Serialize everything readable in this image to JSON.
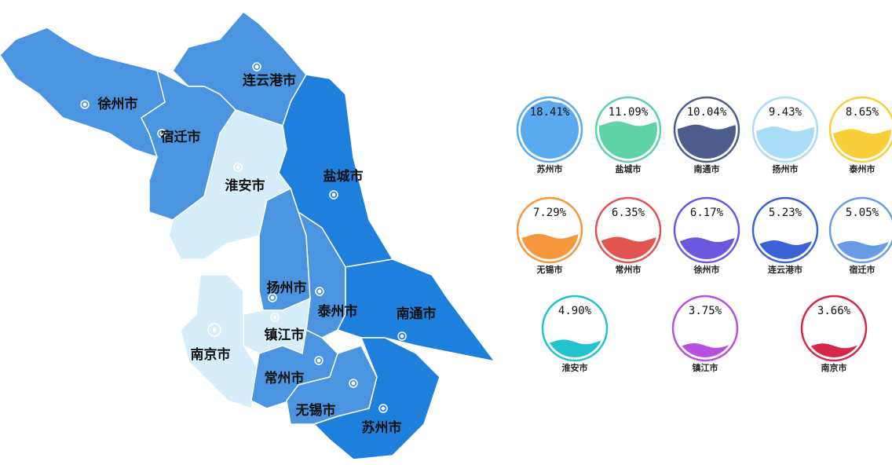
{
  "map": {
    "regions": [
      {
        "name": "徐州市"
      },
      {
        "name": "连云港市"
      },
      {
        "name": "宿迁市"
      },
      {
        "name": "淮安市"
      },
      {
        "name": "盐城市"
      },
      {
        "name": "扬州市"
      },
      {
        "name": "泰州市"
      },
      {
        "name": "南通市"
      },
      {
        "name": "镇江市"
      },
      {
        "name": "南京市"
      },
      {
        "name": "常州市"
      },
      {
        "name": "无锡市"
      },
      {
        "name": "苏州市"
      }
    ]
  },
  "gauges": [
    {
      "name": "苏州市",
      "value": 18.41,
      "value_label": "18.41%",
      "color": "#5aaaf0"
    },
    {
      "name": "盐城市",
      "value": 11.09,
      "value_label": "11.09%",
      "color": "#5fd3a6"
    },
    {
      "name": "南通市",
      "value": 10.04,
      "value_label": "10.04%",
      "color": "#4d5e8e"
    },
    {
      "name": "扬州市",
      "value": 9.43,
      "value_label": "9.43%",
      "color": "#a9dcf5"
    },
    {
      "name": "泰州市",
      "value": 8.65,
      "value_label": "8.65%",
      "color": "#f8cf3a"
    },
    {
      "name": "无锡市",
      "value": 7.29,
      "value_label": "7.29%",
      "color": "#f7973e"
    },
    {
      "name": "常州市",
      "value": 6.35,
      "value_label": "6.35%",
      "color": "#e2544e"
    },
    {
      "name": "徐州市",
      "value": 6.17,
      "value_label": "6.17%",
      "color": "#6b58de"
    },
    {
      "name": "连云港市",
      "value": 5.23,
      "value_label": "5.23%",
      "color": "#3c62d4"
    },
    {
      "name": "宿迁市",
      "value": 5.05,
      "value_label": "5.05%",
      "color": "#6a9ce6"
    },
    {
      "name": "淮安市",
      "value": 4.9,
      "value_label": "4.90%",
      "color": "#23c2cf"
    },
    {
      "name": "镇江市",
      "value": 3.75,
      "value_label": "3.75%",
      "color": "#b84fe0"
    },
    {
      "name": "南京市",
      "value": 3.66,
      "value_label": "3.66%",
      "color": "#d6274a"
    }
  ]
}
